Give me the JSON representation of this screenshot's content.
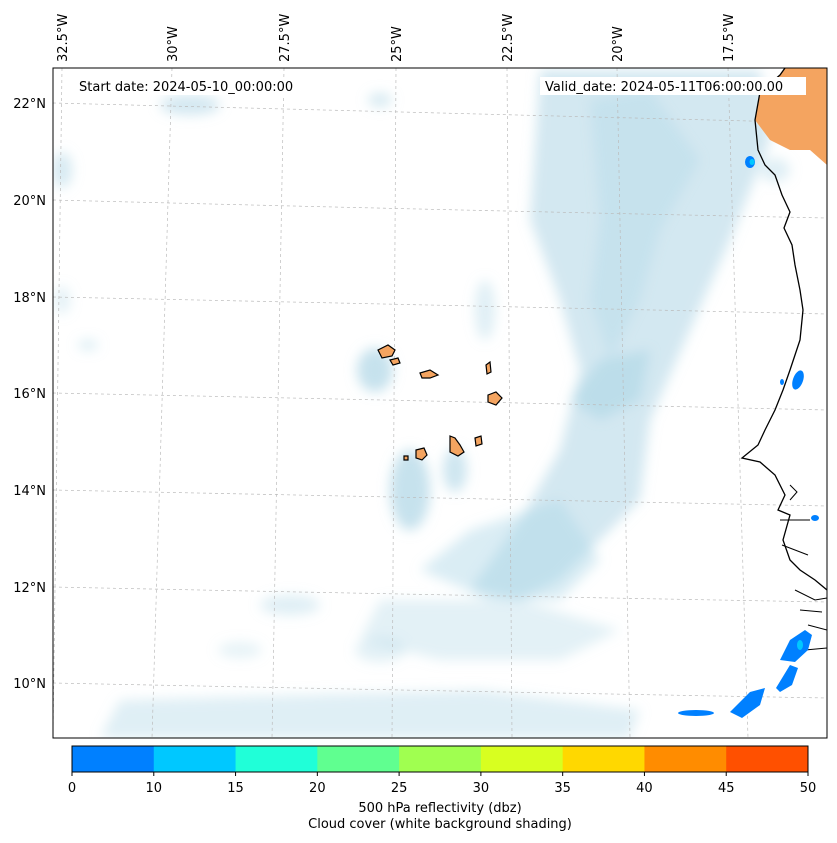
{
  "header": {
    "start_date": "Start date: 2024-05-10_00:00:00",
    "valid_date": "Valid_date: 2024-05-11T06:00:00.00"
  },
  "axes": {
    "lon_labels": [
      "32.5°W",
      "30°W",
      "27.5°W",
      "25°W",
      "22.5°W",
      "20°W",
      "17.5°W"
    ],
    "lat_labels": [
      "22°N",
      "20°N",
      "18°N",
      "16°N",
      "14°N",
      "12°N",
      "10°N"
    ]
  },
  "colorbar": {
    "ticks": [
      "0",
      "10",
      "15",
      "20",
      "25",
      "30",
      "35",
      "40",
      "45",
      "50"
    ],
    "colors": [
      "#0080ff",
      "#00c8ff",
      "#20ffd8",
      "#60ff90",
      "#a0ff50",
      "#d8ff20",
      "#ffd800",
      "#ff8c00",
      "#ff5000"
    ],
    "label_line1": "500 hPa reflectivity (dbz)",
    "label_line2": "Cloud cover (white background shading)"
  },
  "map": {
    "land_color": "#f4a460",
    "cloud_color": "#aed6e6",
    "grid": true,
    "features": [
      "Cape Verde islands",
      "West African coastline"
    ]
  }
}
